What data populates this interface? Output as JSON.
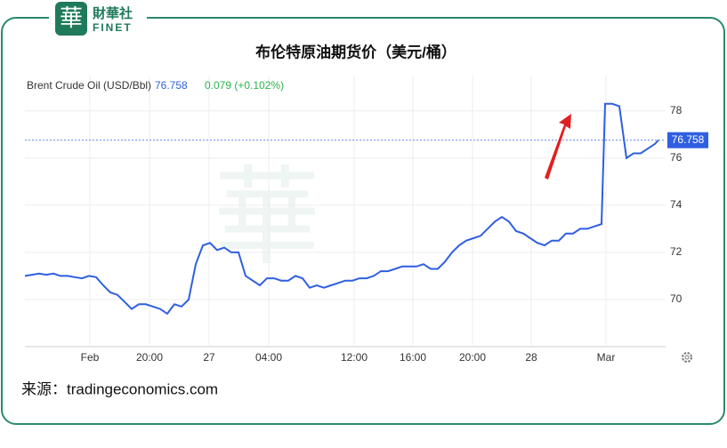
{
  "logo": {
    "name": "財華社",
    "latin": "FINET"
  },
  "chart_data": {
    "type": "line",
    "title": "布伦特原油期货价（美元/桶）",
    "legend_change": "0.079 (+0.102%)",
    "source": "来源：tradingeconomics.com",
    "series": [
      {
        "name": "Brent Crude Oil (USD/Bbl)",
        "color": "#2f5fe0",
        "x": [
          0,
          8,
          16,
          24,
          32,
          40,
          48,
          56,
          64,
          72,
          80,
          88,
          96,
          104,
          112,
          120,
          128,
          136,
          144,
          152,
          160,
          168,
          176,
          184,
          192,
          200,
          208,
          216,
          224,
          232,
          240,
          248,
          256,
          264,
          272,
          280,
          288,
          296,
          304,
          312,
          320,
          328,
          336,
          344,
          352,
          360,
          368,
          376,
          384,
          392,
          400,
          408,
          416,
          424,
          432,
          440,
          448,
          456,
          464,
          472,
          480,
          488,
          496,
          504,
          512,
          520,
          528,
          536,
          544,
          552,
          560,
          568,
          576,
          584,
          592,
          600,
          608,
          616,
          624,
          632,
          640,
          648,
          652,
          660,
          668,
          676,
          684,
          692,
          700,
          708,
          712
        ],
        "values": [
          71.0,
          71.05,
          71.1,
          71.05,
          71.1,
          71.0,
          71.0,
          70.95,
          70.9,
          71.0,
          70.95,
          70.6,
          70.3,
          70.2,
          69.9,
          69.6,
          69.8,
          69.8,
          69.7,
          69.6,
          69.4,
          69.8,
          69.7,
          70.0,
          71.5,
          72.3,
          72.4,
          72.1,
          72.2,
          72.0,
          72.0,
          71.0,
          70.8,
          70.6,
          70.9,
          70.9,
          70.8,
          70.8,
          71.0,
          70.9,
          70.5,
          70.6,
          70.5,
          70.6,
          70.7,
          70.8,
          70.8,
          70.9,
          70.9,
          71.0,
          71.2,
          71.2,
          71.3,
          71.4,
          71.4,
          71.4,
          71.5,
          71.3,
          71.3,
          71.6,
          72.0,
          72.3,
          72.5,
          72.6,
          72.7,
          73.0,
          73.3,
          73.5,
          73.3,
          72.9,
          72.8,
          72.6,
          72.4,
          72.3,
          72.5,
          72.5,
          72.8,
          72.8,
          73.0,
          73.0,
          73.1,
          73.2,
          78.3,
          78.3,
          78.2,
          76.0,
          76.2,
          76.2,
          76.4,
          76.6,
          76.758
        ]
      }
    ],
    "xlim": [
      0,
      720
    ],
    "xticks": [
      {
        "value": 73,
        "label": "Feb"
      },
      {
        "value": 140,
        "label": "20:00"
      },
      {
        "value": 207,
        "label": "27"
      },
      {
        "value": 274,
        "label": "04:00"
      },
      {
        "value": 370,
        "label": "12:00"
      },
      {
        "value": 436,
        "label": "16:00"
      },
      {
        "value": 503,
        "label": "20:00"
      },
      {
        "value": 569,
        "label": "28"
      },
      {
        "value": 653,
        "label": "Mar"
      }
    ],
    "ylim": [
      68,
      79.5
    ],
    "yticks": [
      70,
      72,
      74,
      76,
      78
    ],
    "grid": true
  }
}
